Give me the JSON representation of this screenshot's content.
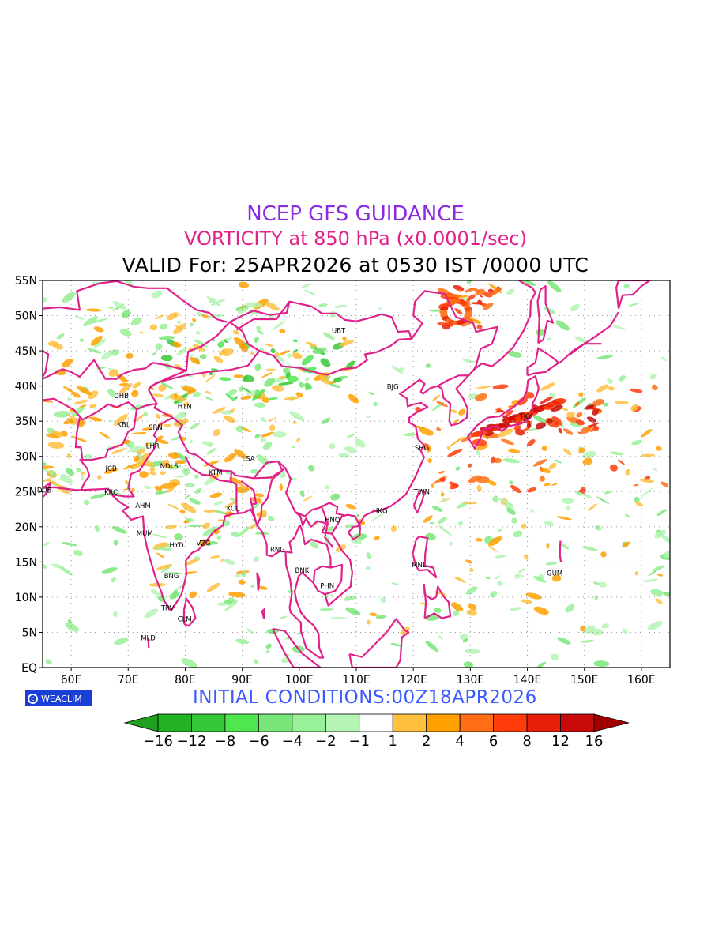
{
  "title": {
    "line1": "NCEP GFS GUIDANCE",
    "line2": "VORTICITY at 850 hPa (x0.0001/sec)",
    "line3": "VALID For: 25APR2026 at 0530 IST /0000 UTC"
  },
  "map": {
    "lon_range": [
      55,
      165
    ],
    "lat_range": [
      0,
      55
    ],
    "lat_ticks": [
      "55N",
      "50N",
      "45N",
      "40N",
      "35N",
      "30N",
      "25N",
      "20N",
      "15N",
      "10N",
      "5N",
      "EQ"
    ],
    "lon_ticks": [
      "60E",
      "70E",
      "80E",
      "90E",
      "100E",
      "110E",
      "120E",
      "130E",
      "140E",
      "150E",
      "160E"
    ],
    "grid": true,
    "stations": [
      {
        "code": "UBT",
        "lon": 106.9,
        "lat": 47.9
      },
      {
        "code": "BJG",
        "lon": 116.4,
        "lat": 39.9
      },
      {
        "code": "DHB",
        "lon": 68.8,
        "lat": 38.6
      },
      {
        "code": "HTN",
        "lon": 79.9,
        "lat": 37.1
      },
      {
        "code": "KBL",
        "lon": 69.2,
        "lat": 34.5
      },
      {
        "code": "SRN",
        "lon": 74.8,
        "lat": 34.1
      },
      {
        "code": "LHR",
        "lon": 74.3,
        "lat": 31.5
      },
      {
        "code": "TKY",
        "lon": 139.7,
        "lat": 35.7
      },
      {
        "code": "SHG",
        "lon": 121.5,
        "lat": 31.2
      },
      {
        "code": "LSA",
        "lon": 91.1,
        "lat": 29.7
      },
      {
        "code": "JCB",
        "lon": 67.0,
        "lat": 28.3
      },
      {
        "code": "NDLS",
        "lon": 77.2,
        "lat": 28.6
      },
      {
        "code": "KTM",
        "lon": 85.3,
        "lat": 27.7
      },
      {
        "code": "DUB",
        "lon": 55.3,
        "lat": 25.2
      },
      {
        "code": "KRC",
        "lon": 67.0,
        "lat": 24.9
      },
      {
        "code": "TWN",
        "lon": 121.5,
        "lat": 25.0
      },
      {
        "code": "AHM",
        "lon": 72.6,
        "lat": 23.0
      },
      {
        "code": "KOL",
        "lon": 88.4,
        "lat": 22.6
      },
      {
        "code": "HKG",
        "lon": 114.2,
        "lat": 22.3
      },
      {
        "code": "HNO",
        "lon": 105.8,
        "lat": 21.0
      },
      {
        "code": "MUM",
        "lon": 72.9,
        "lat": 19.1
      },
      {
        "code": "HYD",
        "lon": 78.5,
        "lat": 17.4
      },
      {
        "code": "VZG",
        "lon": 83.2,
        "lat": 17.7
      },
      {
        "code": "RNG",
        "lon": 96.2,
        "lat": 16.8
      },
      {
        "code": "MNL",
        "lon": 121.0,
        "lat": 14.6
      },
      {
        "code": "BNK",
        "lon": 100.5,
        "lat": 13.8
      },
      {
        "code": "GUM",
        "lon": 144.8,
        "lat": 13.4
      },
      {
        "code": "BNG",
        "lon": 77.6,
        "lat": 13.0
      },
      {
        "code": "PHN",
        "lon": 104.9,
        "lat": 11.6
      },
      {
        "code": "TRV",
        "lon": 76.9,
        "lat": 8.5
      },
      {
        "code": "CLM",
        "lon": 79.9,
        "lat": 6.9
      },
      {
        "code": "MLD",
        "lon": 73.5,
        "lat": 4.2
      }
    ]
  },
  "colorbar": {
    "labels": [
      "−16",
      "−12",
      "−8",
      "−6",
      "−4",
      "−2",
      "−1",
      "1",
      "2",
      "4",
      "6",
      "8",
      "12",
      "16"
    ],
    "colors": [
      "#1fa01f",
      "#23b223",
      "#37c837",
      "#50e650",
      "#78e678",
      "#98f098",
      "#b4f5b4",
      "#ffffff",
      "#ffc040",
      "#ffa000",
      "#ff6e14",
      "#ff3c0a",
      "#e61e0a",
      "#c80a0a",
      "#a00000"
    ]
  },
  "logo": "WEACLIM",
  "initial_conditions": "INITIAL  CONDITIONS:00Z18APR2026",
  "colors": {
    "coastline": "#e0218a",
    "title1": "#8a2be2",
    "title2": "#e0218a",
    "init": "#3b5bff"
  }
}
